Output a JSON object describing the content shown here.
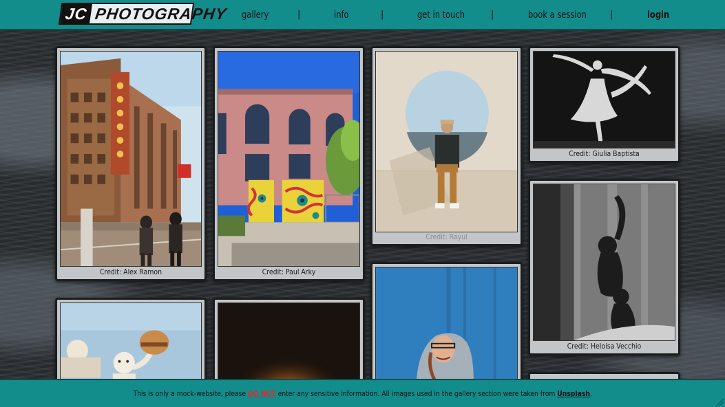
{
  "header": {
    "logo": {
      "part1": "JC",
      "part2": "PHOTOGRAPHY"
    },
    "nav": [
      {
        "label": "gallery"
      },
      {
        "label": "info"
      },
      {
        "label": "get in touch"
      },
      {
        "label": "book a session"
      },
      {
        "label": "login"
      }
    ],
    "separator": "|"
  },
  "gallery": {
    "cards": [
      {
        "credit": "Credit: Alex Ramon",
        "subject": "city street with tall brick building and vertical sign"
      },
      {
        "credit": "Credit: Paul Arky",
        "subject": "pink building with colorful painted utility boxes"
      },
      {
        "credit": "Credit: Rayul",
        "subject": "man sitting in front of circular window"
      },
      {
        "credit": "Credit: Giulia Baptista",
        "subject": "black and white ballerina leaping"
      },
      {
        "credit": "Credit: Heloisa Vecchio",
        "subject": "silhouettes of dancers behind curtain"
      },
      {
        "credit": "",
        "subject": "mascot statue holding burger"
      },
      {
        "credit": "",
        "subject": "dark scene with warm light"
      },
      {
        "credit": "",
        "subject": "smiling woman in grey hood against blue wall"
      },
      {
        "credit": "",
        "subject": "partially visible card"
      }
    ]
  },
  "footer": {
    "text_before": "This is only a mock-website, please ",
    "warning": "DO NOT",
    "text_middle": " enter any sensitive information. All images used in the gallery section were taken from ",
    "link": "Unsplash",
    "text_after": "."
  },
  "colors": {
    "header_bg": "#138c8c",
    "card_bg": "#c3c6c8",
    "warning": "#e02a2a",
    "page_bg": "#2c3034"
  }
}
